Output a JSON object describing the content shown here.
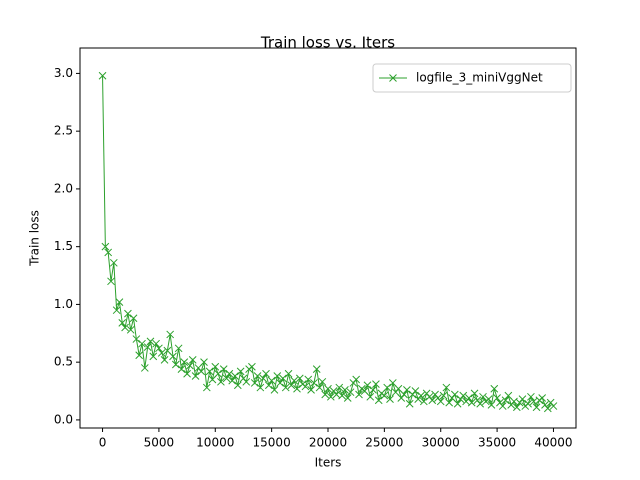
{
  "chart_data": {
    "type": "line",
    "title": "Train loss  vs. Iters",
    "xlabel": "Iters",
    "ylabel": "Train loss",
    "xlim": [
      -2000,
      42000
    ],
    "ylim": [
      -0.07,
      3.22
    ],
    "xticks": [
      0,
      5000,
      10000,
      15000,
      20000,
      25000,
      30000,
      35000,
      40000
    ],
    "yticks": [
      {
        "value": 0,
        "label": "0.0"
      },
      0.5,
      {
        "value": 1,
        "label": "1.0"
      },
      1.5,
      {
        "value": 2,
        "label": "2.0"
      },
      2.5,
      {
        "value": 3,
        "label": "3.0"
      }
    ],
    "legend": "upper right",
    "marker": "x",
    "x": [
      0,
      250,
      500,
      750,
      1000,
      1250,
      1500,
      1750,
      2000,
      2250,
      2500,
      2750,
      3000,
      3250,
      3500,
      3750,
      4000,
      4250,
      4500,
      4750,
      5000,
      5250,
      5500,
      5750,
      6000,
      6250,
      6500,
      6750,
      7000,
      7250,
      7500,
      7750,
      8000,
      8250,
      8500,
      8750,
      9000,
      9250,
      9500,
      9750,
      10000,
      10250,
      10500,
      10750,
      11000,
      11250,
      11500,
      11750,
      12000,
      12250,
      12500,
      12750,
      13000,
      13250,
      13500,
      13750,
      14000,
      14250,
      14500,
      14750,
      15000,
      15250,
      15500,
      15750,
      16000,
      16250,
      16500,
      16750,
      17000,
      17250,
      17500,
      17750,
      18000,
      18250,
      18500,
      18750,
      19000,
      19250,
      19500,
      19750,
      20000,
      20250,
      20500,
      20750,
      21000,
      21250,
      21500,
      21750,
      22000,
      22250,
      22500,
      22750,
      23000,
      23250,
      23500,
      23750,
      24000,
      24250,
      24500,
      24750,
      25000,
      25250,
      25500,
      25750,
      26000,
      26250,
      26500,
      26750,
      27000,
      27250,
      27500,
      27750,
      28000,
      28250,
      28500,
      28750,
      29000,
      29250,
      29500,
      29750,
      30000,
      30250,
      30500,
      30750,
      31000,
      31250,
      31500,
      31750,
      32000,
      32250,
      32500,
      32750,
      33000,
      33250,
      33500,
      33750,
      34000,
      34250,
      34500,
      34750,
      35000,
      35250,
      35500,
      35750,
      36000,
      36250,
      36500,
      36750,
      37000,
      37250,
      37500,
      37750,
      38000,
      38250,
      38500,
      38750,
      39000,
      39250,
      39500,
      39750,
      40000
    ],
    "series": [
      {
        "name": "logfile_3_miniVggNet",
        "color": "#2ca02c",
        "values": [
          2.98,
          1.5,
          1.45,
          1.2,
          1.36,
          0.95,
          1.02,
          0.84,
          0.8,
          0.92,
          0.78,
          0.88,
          0.7,
          0.56,
          0.66,
          0.45,
          0.63,
          0.68,
          0.55,
          0.66,
          0.62,
          0.58,
          0.52,
          0.6,
          0.74,
          0.55,
          0.48,
          0.62,
          0.44,
          0.5,
          0.4,
          0.47,
          0.52,
          0.38,
          0.45,
          0.42,
          0.5,
          0.28,
          0.42,
          0.35,
          0.46,
          0.4,
          0.33,
          0.44,
          0.36,
          0.4,
          0.34,
          0.38,
          0.3,
          0.42,
          0.36,
          0.33,
          0.44,
          0.46,
          0.32,
          0.38,
          0.28,
          0.36,
          0.4,
          0.3,
          0.34,
          0.26,
          0.38,
          0.32,
          0.36,
          0.28,
          0.4,
          0.3,
          0.34,
          0.27,
          0.36,
          0.31,
          0.29,
          0.35,
          0.26,
          0.32,
          0.44,
          0.28,
          0.33,
          0.22,
          0.27,
          0.2,
          0.25,
          0.22,
          0.28,
          0.21,
          0.26,
          0.19,
          0.24,
          0.32,
          0.35,
          0.22,
          0.27,
          0.25,
          0.3,
          0.2,
          0.26,
          0.31,
          0.17,
          0.23,
          0.21,
          0.28,
          0.18,
          0.32,
          0.24,
          0.27,
          0.19,
          0.22,
          0.26,
          0.14,
          0.22,
          0.25,
          0.18,
          0.21,
          0.16,
          0.23,
          0.2,
          0.17,
          0.22,
          0.19,
          0.16,
          0.21,
          0.28,
          0.15,
          0.19,
          0.22,
          0.14,
          0.18,
          0.21,
          0.16,
          0.19,
          0.15,
          0.23,
          0.17,
          0.14,
          0.2,
          0.16,
          0.18,
          0.13,
          0.27,
          0.19,
          0.15,
          0.12,
          0.17,
          0.21,
          0.13,
          0.16,
          0.11,
          0.15,
          0.18,
          0.12,
          0.14,
          0.2,
          0.16,
          0.11,
          0.17,
          0.19,
          0.13,
          0.1,
          0.15,
          0.12
        ]
      }
    ]
  }
}
